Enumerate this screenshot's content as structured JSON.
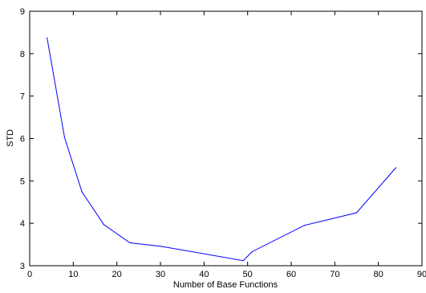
{
  "chart_data": {
    "type": "line",
    "title": "",
    "xlabel": "Number of Base Functions",
    "ylabel": "STD",
    "xlim": [
      0,
      90
    ],
    "ylim": [
      3,
      9
    ],
    "xticks": [
      0,
      10,
      20,
      30,
      40,
      50,
      60,
      70,
      80,
      90
    ],
    "yticks": [
      3,
      4,
      5,
      6,
      7,
      8,
      9
    ],
    "xtick_labels": [
      "0",
      "10",
      "20",
      "30",
      "40",
      "50",
      "60",
      "70",
      "80",
      "90"
    ],
    "ytick_labels": [
      "3",
      "4",
      "5",
      "6",
      "7",
      "8",
      "9"
    ],
    "grid": false,
    "legend": "none",
    "series": [
      {
        "color": "#0000ff",
        "x": [
          4,
          8,
          12,
          17,
          23,
          30,
          49,
          51,
          63,
          75,
          84
        ],
        "y": [
          8.37,
          6.02,
          4.74,
          3.97,
          3.54,
          3.46,
          3.12,
          3.33,
          3.95,
          4.25,
          5.31
        ]
      }
    ]
  }
}
